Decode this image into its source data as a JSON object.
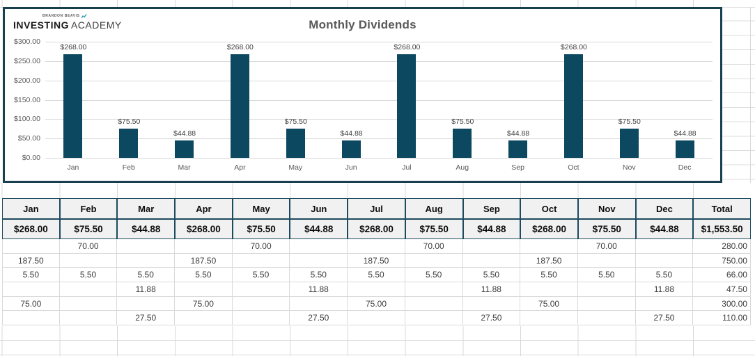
{
  "brand": {
    "top_line": "BRANDON BEAVIS",
    "name_bold": "INVESTING",
    "name_light": "ACADEMY"
  },
  "chart_data": {
    "type": "bar",
    "title": "Monthly Dividends",
    "categories": [
      "Jan",
      "Feb",
      "Mar",
      "Apr",
      "May",
      "Jun",
      "Jul",
      "Aug",
      "Sep",
      "Oct",
      "Nov",
      "Dec"
    ],
    "values": [
      268.0,
      75.5,
      44.88,
      268.0,
      75.5,
      44.88,
      268.0,
      75.5,
      44.88,
      268.0,
      75.5,
      44.88
    ],
    "bar_labels": [
      "$268.00",
      "$75.50",
      "$44.88",
      "$268.00",
      "$75.50",
      "$44.88",
      "$268.00",
      "$75.50",
      "$44.88",
      "$268.00",
      "$75.50",
      "$44.88"
    ],
    "yticks": [
      "$300.00",
      "$250.00",
      "$200.00",
      "$150.00",
      "$100.00",
      "$50.00",
      "$0.00"
    ],
    "ytick_values": [
      300,
      250,
      200,
      150,
      100,
      50,
      0
    ],
    "ylim": [
      0,
      300
    ],
    "grid": true,
    "legend_position": "none",
    "bar_color": "#0d4861"
  },
  "table": {
    "headers": [
      "Jan",
      "Feb",
      "Mar",
      "Apr",
      "May",
      "Jun",
      "Jul",
      "Aug",
      "Sep",
      "Oct",
      "Nov",
      "Dec",
      "Total"
    ],
    "totals_row": [
      "$268.00",
      "$75.50",
      "$44.88",
      "$268.00",
      "$75.50",
      "$44.88",
      "$268.00",
      "$75.50",
      "$44.88",
      "$268.00",
      "$75.50",
      "$44.88",
      "$1,553.50"
    ],
    "detail_rows": [
      [
        "",
        "70.00",
        "",
        "",
        "70.00",
        "",
        "",
        "70.00",
        "",
        "",
        "70.00",
        "",
        "280.00"
      ],
      [
        "187.50",
        "",
        "",
        "187.50",
        "",
        "",
        "187.50",
        "",
        "",
        "187.50",
        "",
        "",
        "750.00"
      ],
      [
        "5.50",
        "5.50",
        "5.50",
        "5.50",
        "5.50",
        "5.50",
        "5.50",
        "5.50",
        "5.50",
        "5.50",
        "5.50",
        "5.50",
        "66.00"
      ],
      [
        "",
        "",
        "11.88",
        "",
        "",
        "11.88",
        "",
        "",
        "11.88",
        "",
        "",
        "11.88",
        "47.50"
      ],
      [
        "75.00",
        "",
        "",
        "75.00",
        "",
        "",
        "75.00",
        "",
        "",
        "75.00",
        "",
        "",
        "300.00"
      ],
      [
        "",
        "",
        "27.50",
        "",
        "",
        "27.50",
        "",
        "",
        "27.50",
        "",
        "",
        "27.50",
        "110.00"
      ]
    ]
  }
}
